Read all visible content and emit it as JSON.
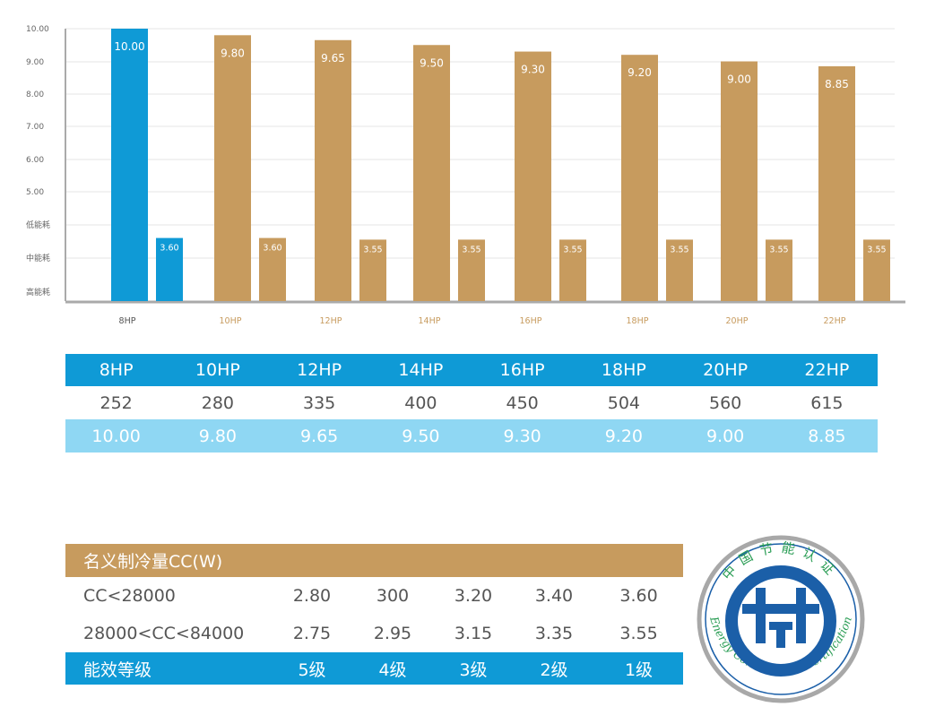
{
  "chart_data": {
    "type": "bar",
    "y_ticks": [
      "10.00",
      "9.00",
      "8.00",
      "7.00",
      "6.00",
      "5.00",
      "低能耗",
      "中能耗",
      "高能耗"
    ],
    "categories": [
      "8HP",
      "10HP",
      "12HP",
      "14HP",
      "16HP",
      "18HP",
      "20HP",
      "22HP"
    ],
    "series": [
      {
        "values": [
          10.0,
          9.8,
          9.65,
          9.5,
          9.3,
          9.2,
          9.0,
          8.85
        ],
        "labels": [
          "10.00",
          "9.80",
          "9.65",
          "9.50",
          "9.30",
          "9.20",
          "9.00",
          "8.85"
        ]
      },
      {
        "values": [
          3.6,
          3.6,
          3.55,
          3.55,
          3.55,
          3.55,
          3.55,
          3.55
        ],
        "labels": [
          "3.60",
          "3.60",
          "3.55",
          "3.55",
          "3.55",
          "3.55",
          "3.55",
          "3.55"
        ]
      }
    ],
    "colors": {
      "highlight": "#0f9ad6",
      "normal": "#c79b5e",
      "axis": "#aaaaaa",
      "grid": "#e6e6e6",
      "tick_text": "#666666"
    }
  },
  "spec_table": {
    "models": [
      "8HP",
      "10HP",
      "12HP",
      "14HP",
      "16HP",
      "18HP",
      "20HP",
      "22HP"
    ],
    "capacity": [
      "252",
      "280",
      "335",
      "400",
      "450",
      "504",
      "560",
      "615"
    ],
    "eer": [
      "10.00",
      "9.80",
      "9.65",
      "9.50",
      "9.30",
      "9.20",
      "9.00",
      "8.85"
    ]
  },
  "grade_table": {
    "header": "名义制冷量CC(W)",
    "rows": [
      {
        "label": "CC<28000",
        "values": [
          "2.80",
          "300",
          "3.20",
          "3.40",
          "3.60"
        ]
      },
      {
        "label": "28000<CC<84000",
        "values": [
          "2.75",
          "2.95",
          "3.15",
          "3.35",
          "3.55"
        ]
      }
    ],
    "footer": {
      "label": "能效等级",
      "values": [
        "5级",
        "4级",
        "3级",
        "2级",
        "1级"
      ]
    }
  },
  "seal": {
    "cn_text": "中国节能认证",
    "en_text": "Energy Conservation Certification",
    "colors": {
      "blue": "#1b5fa8",
      "green": "#2a9d55",
      "ring": "#a8a8a8"
    }
  }
}
